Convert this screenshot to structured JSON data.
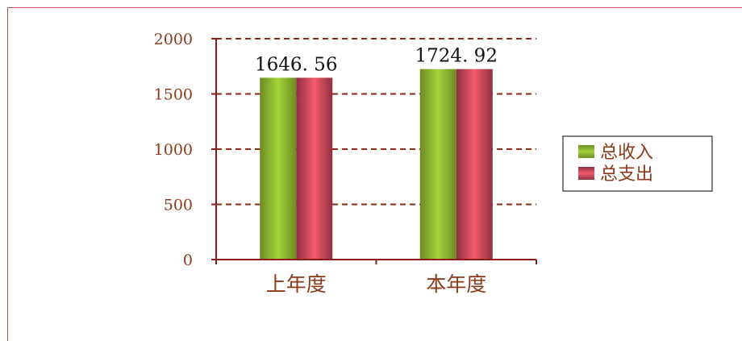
{
  "chart_data": {
    "type": "bar",
    "categories": [
      "上年度",
      "本年度"
    ],
    "series": [
      {
        "name": "总收入",
        "values": [
          1646.56,
          1724.92
        ],
        "color": "#a4d43c"
      },
      {
        "name": "总支出",
        "values": [
          1646.56,
          1724.92
        ],
        "color": "#f55a6e"
      }
    ],
    "data_labels": [
      "1646. 56",
      "1724. 92"
    ],
    "ylim": [
      0,
      2000
    ],
    "yticks": [
      0,
      500,
      1000,
      1500,
      2000
    ],
    "grid": true,
    "legend": "right",
    "axis_color": "#8b1a1a"
  }
}
